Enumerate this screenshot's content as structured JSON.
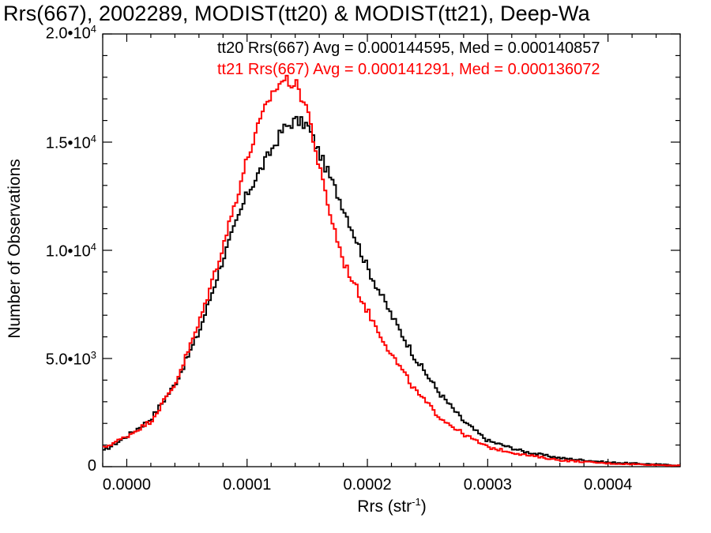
{
  "chart_data": {
    "type": "line",
    "title": "Rrs(667), 2002289, MODIST(tt20) & MODIST(tt21), Deep-Wa",
    "xlabel": "Rrs (str",
    "xlabel_sup": "-1",
    "xlabel_close": ")",
    "ylabel": "Number of Observations",
    "xlim": [
      -2e-05,
      0.00046
    ],
    "ylim": [
      0,
      20000
    ],
    "grid": false,
    "legend_placement": "top-right",
    "x_ticks": [
      {
        "value": 0.0,
        "label": "0.0000"
      },
      {
        "value": 0.0001,
        "label": "0.0001"
      },
      {
        "value": 0.0002,
        "label": "0.0002"
      },
      {
        "value": 0.0003,
        "label": "0.0003"
      },
      {
        "value": 0.0004,
        "label": "0.0004"
      }
    ],
    "y_ticks": [
      {
        "value": 0,
        "mant": "0",
        "exp": ""
      },
      {
        "value": 5000,
        "mant": "5.0•10",
        "exp": "3"
      },
      {
        "value": 10000,
        "mant": "1.0•10",
        "exp": "4"
      },
      {
        "value": 15000,
        "mant": "1.5•10",
        "exp": "4"
      },
      {
        "value": 20000,
        "mant": "2.0•10",
        "exp": "4"
      }
    ],
    "series": [
      {
        "name": "tt20 Rrs(667) Avg = 0.000144595, Med = 0.000140857",
        "color": "#000000",
        "x": [
          -2e-05,
          0.0,
          2e-05,
          4e-05,
          6e-05,
          8e-05,
          0.0001,
          0.00012,
          0.00013,
          0.00014,
          0.00015,
          0.00016,
          0.00018,
          0.0002,
          0.00022,
          0.00024,
          0.00026,
          0.00028,
          0.0003,
          0.00033,
          0.00036,
          0.0004,
          0.00046
        ],
        "y": [
          700,
          1400,
          2200,
          3800,
          6200,
          9600,
          12600,
          14600,
          15600,
          16000,
          15800,
          14500,
          12000,
          9200,
          7000,
          5000,
          3400,
          2100,
          1200,
          700,
          400,
          200,
          60
        ]
      },
      {
        "name": "tt21 Rrs(667) Avg = 0.000141291, Med = 0.000136072",
        "color": "#ff0000",
        "x": [
          -2e-05,
          0.0,
          2e-05,
          4e-05,
          6e-05,
          8e-05,
          0.0001,
          0.00011,
          0.00012,
          0.00013,
          0.00014,
          0.00015,
          0.00016,
          0.00017,
          0.00018,
          0.0002,
          0.00022,
          0.00024,
          0.00026,
          0.00028,
          0.0003,
          0.00033,
          0.00036,
          0.0004,
          0.00046
        ],
        "y": [
          850,
          1400,
          2100,
          3800,
          6600,
          10200,
          14200,
          15800,
          17200,
          17900,
          17700,
          16600,
          13800,
          11500,
          9500,
          7200,
          5200,
          3500,
          2300,
          1500,
          900,
          550,
          300,
          150,
          50
        ]
      }
    ]
  }
}
